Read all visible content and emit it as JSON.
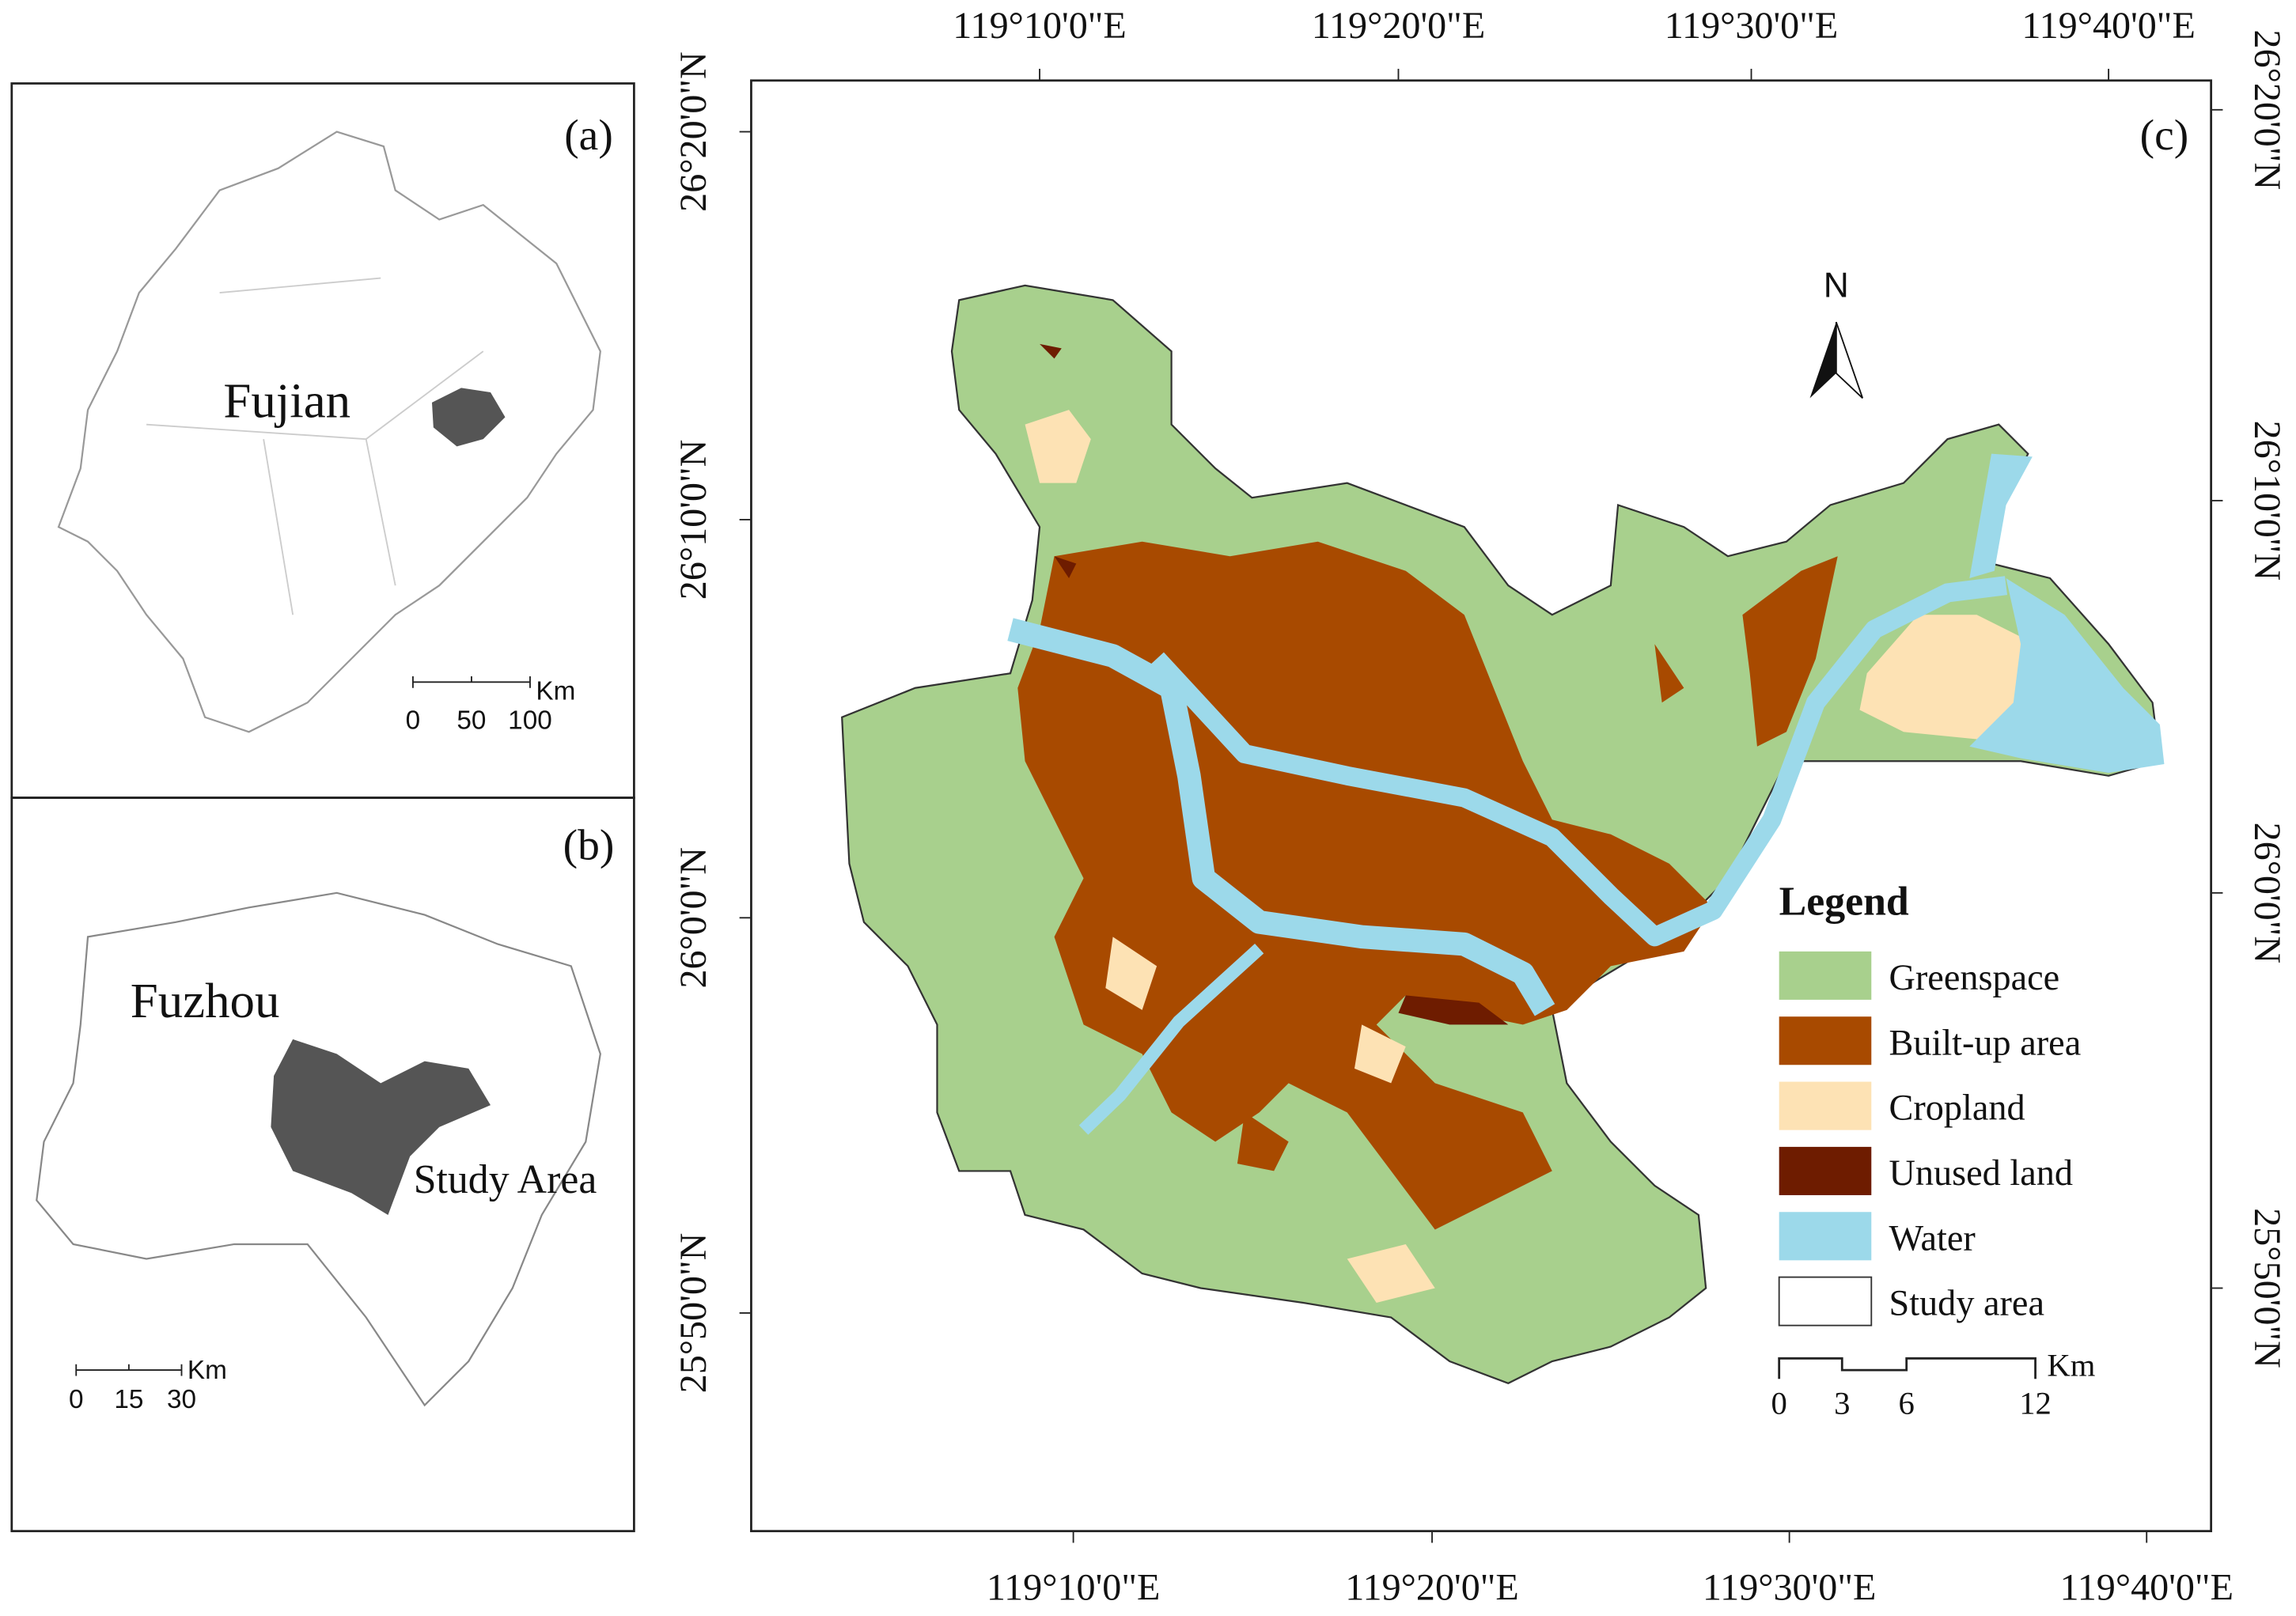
{
  "panel_a": {
    "label": "(a)",
    "place": "Fujian",
    "scale_unit": "Km",
    "scale_labels": [
      "0",
      "50",
      "100"
    ]
  },
  "panel_b": {
    "label": "(b)",
    "place": "Fuzhou",
    "study_area": "Study Area",
    "scale_unit": "Km",
    "scale_labels": [
      "0",
      "15",
      "30"
    ]
  },
  "panel_c": {
    "label": "(c)",
    "north": "N",
    "top_labels": [
      "119°10'0\"E",
      "119°20'0\"E",
      "119°30'0\"E",
      "119°40'0\"E"
    ],
    "bottom_labels": [
      "119°10'0\"E",
      "119°20'0\"E",
      "119°30'0\"E",
      "119°40'0\"E"
    ],
    "left_labels": [
      "26°20'0\"N",
      "26°10'0\"N",
      "26°0'0\"N",
      "25°50'0\"N"
    ],
    "right_labels": [
      "26°20'0\"N",
      "26°10'0\"N",
      "26°0'0\"N",
      "25°50'0\"N"
    ],
    "legend": {
      "title": "Legend",
      "items": [
        {
          "name": "Greenspace",
          "color": "#a8d08d"
        },
        {
          "name": "Built-up area",
          "color": "#a84a00"
        },
        {
          "name": "Cropland",
          "color": "#fde2b4"
        },
        {
          "name": "Unused land",
          "color": "#6e1c00"
        },
        {
          "name": "Water",
          "color": "#9cd9ea"
        },
        {
          "name": "Study area",
          "color": "#ffffff"
        }
      ]
    },
    "scale_unit": "Km",
    "scale_labels": [
      "0",
      "3",
      "6",
      "12"
    ]
  }
}
